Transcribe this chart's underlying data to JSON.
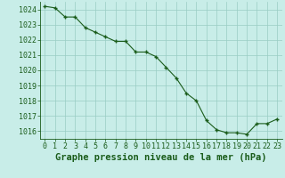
{
  "x": [
    0,
    1,
    2,
    3,
    4,
    5,
    6,
    7,
    8,
    9,
    10,
    11,
    12,
    13,
    14,
    15,
    16,
    17,
    18,
    19,
    20,
    21,
    22,
    23
  ],
  "y": [
    1024.2,
    1024.1,
    1023.5,
    1023.5,
    1022.8,
    1022.5,
    1022.2,
    1021.9,
    1021.9,
    1021.2,
    1021.2,
    1020.9,
    1020.2,
    1019.5,
    1018.5,
    1018.0,
    1016.7,
    1016.1,
    1015.9,
    1015.9,
    1015.8,
    1016.5,
    1016.5,
    1016.8
  ],
  "line_color": "#1a5c1a",
  "marker_color": "#1a5c1a",
  "bg_color": "#c8ede8",
  "grid_color": "#99ccc4",
  "title": "Graphe pression niveau de la mer (hPa)",
  "xlim": [
    -0.5,
    23.5
  ],
  "ylim": [
    1015.5,
    1024.5
  ],
  "ytick_min": 1016,
  "ytick_max": 1024,
  "ytick_step": 1,
  "xtick_labels": [
    "0",
    "1",
    "2",
    "3",
    "4",
    "5",
    "6",
    "7",
    "8",
    "9",
    "10",
    "11",
    "12",
    "13",
    "14",
    "15",
    "16",
    "17",
    "18",
    "19",
    "20",
    "21",
    "22",
    "23"
  ],
  "title_fontsize": 7.5,
  "tick_fontsize": 6
}
